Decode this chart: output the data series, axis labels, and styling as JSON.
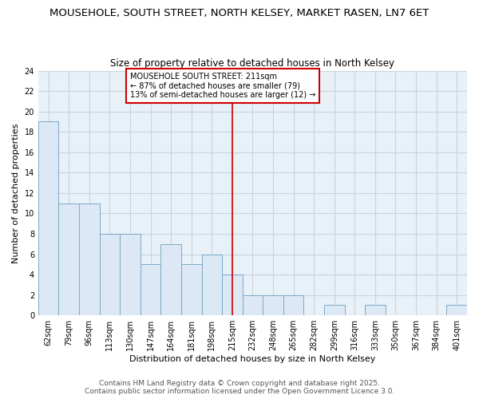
{
  "title_line1": "MOUSEHOLE, SOUTH STREET, NORTH KELSEY, MARKET RASEN, LN7 6ET",
  "title_line2": "Size of property relative to detached houses in North Kelsey",
  "xlabel": "Distribution of detached houses by size in North Kelsey",
  "ylabel": "Number of detached properties",
  "categories": [
    "62sqm",
    "79sqm",
    "96sqm",
    "113sqm",
    "130sqm",
    "147sqm",
    "164sqm",
    "181sqm",
    "198sqm",
    "215sqm",
    "232sqm",
    "248sqm",
    "265sqm",
    "282sqm",
    "299sqm",
    "316sqm",
    "333sqm",
    "350sqm",
    "367sqm",
    "384sqm",
    "401sqm"
  ],
  "values": [
    19,
    11,
    11,
    8,
    8,
    5,
    7,
    5,
    6,
    4,
    2,
    2,
    2,
    0,
    1,
    0,
    1,
    0,
    0,
    0,
    1
  ],
  "bar_color": "#dce8f5",
  "bar_edge_color": "#7aaac8",
  "grid_color": "#c8d4de",
  "plot_bg_color": "#e8f0f8",
  "fig_bg_color": "#ffffff",
  "vline_position": 9,
  "vline_color": "#cc0000",
  "annotation_text": "MOUSEHOLE SOUTH STREET: 211sqm\n← 87% of detached houses are smaller (79)\n13% of semi-detached houses are larger (12) →",
  "annotation_box_color": "#ffffff",
  "annotation_box_edge": "#cc0000",
  "ylim": [
    0,
    24
  ],
  "yticks": [
    0,
    2,
    4,
    6,
    8,
    10,
    12,
    14,
    16,
    18,
    20,
    22,
    24
  ],
  "footer": "Contains HM Land Registry data © Crown copyright and database right 2025.\nContains public sector information licensed under the Open Government Licence 3.0.",
  "title_fontsize": 9.5,
  "subtitle_fontsize": 8.5,
  "axis_label_fontsize": 8,
  "tick_fontsize": 7,
  "annotation_fontsize": 7,
  "footer_fontsize": 6.5
}
